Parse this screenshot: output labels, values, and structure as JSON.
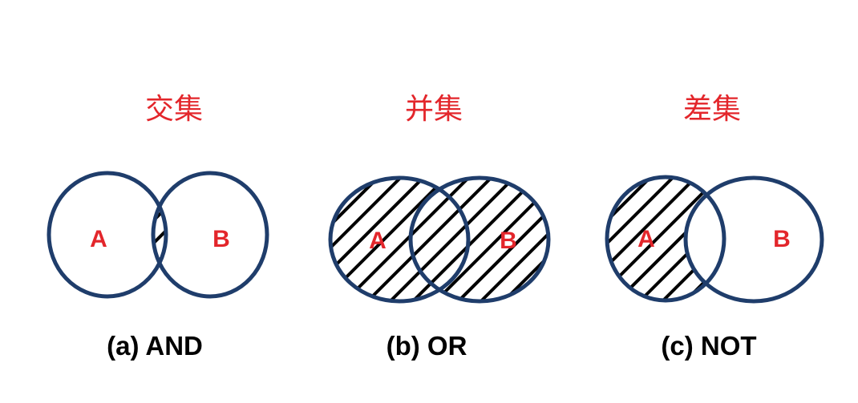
{
  "panels": [
    {
      "title": "交集",
      "caption": "(a) AND",
      "label_a": "A",
      "label_b": "B"
    },
    {
      "title": "并集",
      "caption": "(b) OR",
      "label_a": "A",
      "label_b": "B"
    },
    {
      "title": "差集",
      "caption": "(c) NOT",
      "label_a": "A",
      "label_b": "B"
    }
  ],
  "colors": {
    "title": "#e3262b",
    "outline": "#1f3d6b",
    "hatch": "#000000",
    "set_label": "#e3262b"
  }
}
